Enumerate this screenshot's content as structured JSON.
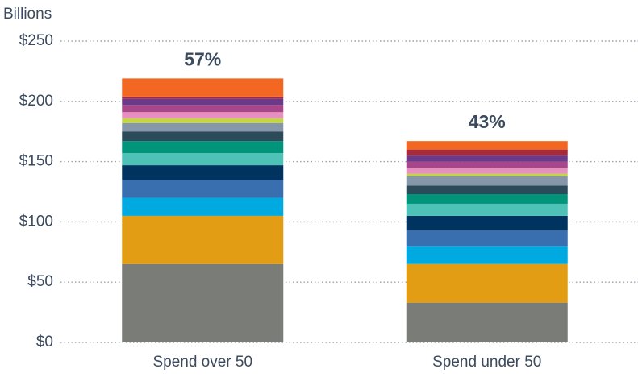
{
  "chart_data": {
    "type": "stacked_bar",
    "y_axis_label": "Billions",
    "categories": [
      "Spend over 50",
      "Spend under 50"
    ],
    "annotations": [
      "57%",
      "43%"
    ],
    "series": [
      {
        "color": "#7a7c78",
        "values": [
          65,
          33
        ]
      },
      {
        "color": "#e39d14",
        "values": [
          40,
          32
        ]
      },
      {
        "color": "#00a9e0",
        "values": [
          15,
          15
        ]
      },
      {
        "color": "#3a6faf",
        "values": [
          15,
          13
        ]
      },
      {
        "color": "#00335f",
        "values": [
          12,
          12
        ]
      },
      {
        "color": "#4fc2b8",
        "values": [
          10,
          10
        ]
      },
      {
        "color": "#00957a",
        "values": [
          10,
          8
        ]
      },
      {
        "color": "#2b4a5a",
        "values": [
          8,
          7
        ]
      },
      {
        "color": "#8597a8",
        "values": [
          7,
          8
        ]
      },
      {
        "color": "#c3d545",
        "values": [
          4,
          2
        ]
      },
      {
        "color": "#e78fc0",
        "values": [
          5,
          5
        ]
      },
      {
        "color": "#a7478a",
        "values": [
          6,
          5
        ]
      },
      {
        "color": "#6a3a8a",
        "values": [
          5,
          5
        ]
      },
      {
        "color": "#a52a3c",
        "values": [
          2,
          5
        ]
      },
      {
        "color": "#f26722",
        "values": [
          15,
          7
        ]
      }
    ],
    "ylim": [
      0,
      250
    ],
    "yticks": [
      {
        "value": 0,
        "label": "$0"
      },
      {
        "value": 50,
        "label": "$50"
      },
      {
        "value": 100,
        "label": "$100"
      },
      {
        "value": 150,
        "label": "$150"
      },
      {
        "value": 200,
        "label": "$200"
      },
      {
        "value": 250,
        "label": "$250"
      }
    ],
    "grid": true
  }
}
